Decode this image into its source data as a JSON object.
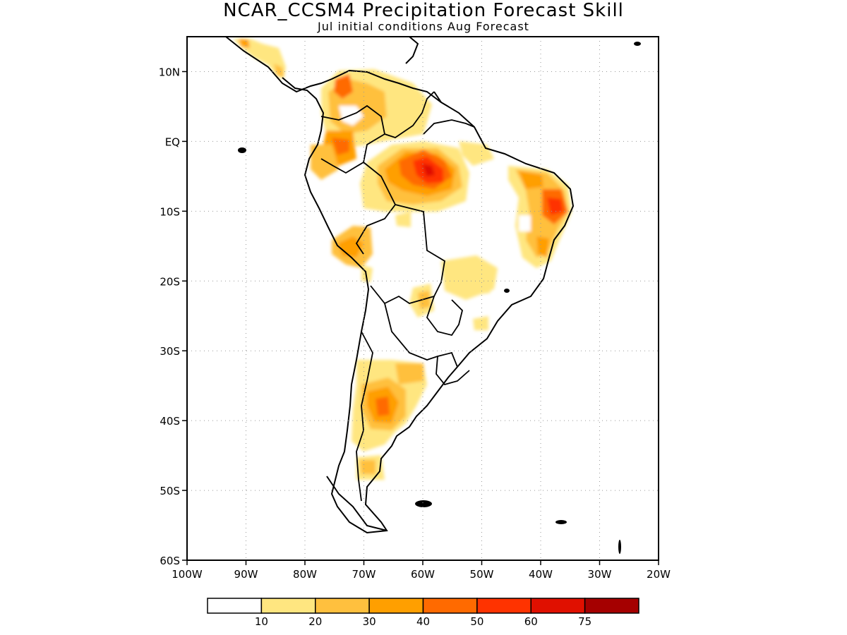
{
  "title": "NCAR_CCSM4 Precipitation Forecast Skill",
  "subtitle": "Jul initial conditions  Aug Forecast",
  "map": {
    "lon_range": [
      -100,
      -20
    ],
    "lat_range": [
      -60,
      15
    ],
    "lat_ticks": [
      {
        "value": 10,
        "label": "10N"
      },
      {
        "value": 0,
        "label": "EQ"
      },
      {
        "value": -10,
        "label": "10S"
      },
      {
        "value": -20,
        "label": "20S"
      },
      {
        "value": -30,
        "label": "30S"
      },
      {
        "value": -40,
        "label": "40S"
      },
      {
        "value": -50,
        "label": "50S"
      },
      {
        "value": -60,
        "label": "60S"
      }
    ],
    "lon_ticks": [
      {
        "value": -100,
        "label": "100W"
      },
      {
        "value": -90,
        "label": "90W"
      },
      {
        "value": -80,
        "label": "80W"
      },
      {
        "value": -70,
        "label": "70W"
      },
      {
        "value": -60,
        "label": "60W"
      },
      {
        "value": -50,
        "label": "50W"
      },
      {
        "value": -40,
        "label": "40W"
      },
      {
        "value": -30,
        "label": "30W"
      },
      {
        "value": -20,
        "label": "20W"
      }
    ],
    "grid": "dotted"
  },
  "colorbar": {
    "colors": [
      "#ffffff",
      "#ffe680",
      "#ffc03e",
      "#ff9f00",
      "#ff6a00",
      "#ff3300",
      "#e01000",
      "#a50000"
    ],
    "labels": [
      "10",
      "20",
      "30",
      "40",
      "50",
      "60",
      "75"
    ]
  }
}
